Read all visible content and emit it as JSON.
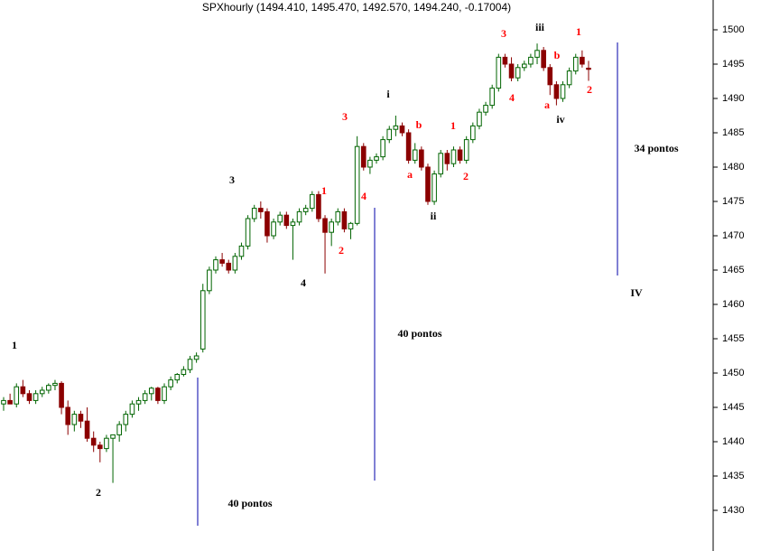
{
  "chart_data": {
    "type": "candlestick",
    "title": "SPXhourly (1494.410, 1495.470, 1492.570, 1494.240, -0.17004)",
    "up_color": "#006400",
    "down_color": "#8b0000",
    "ylim": [
      1424.08,
      1504.34
    ],
    "yticks": [
      1430,
      1435,
      1440,
      1445,
      1450,
      1455,
      1460,
      1465,
      1470,
      1475,
      1480,
      1485,
      1490,
      1495,
      1500
    ],
    "ohlc": [
      [
        1445.5,
        1446.5,
        1444.5,
        1446
      ],
      [
        1446,
        1447,
        1445.5,
        1445.5
      ],
      [
        1445.5,
        1448.5,
        1445,
        1448
      ],
      [
        1448,
        1449,
        1446.5,
        1447
      ],
      [
        1447,
        1447.5,
        1445.5,
        1446
      ],
      [
        1446,
        1447.5,
        1445.5,
        1447
      ],
      [
        1447,
        1448,
        1446.5,
        1447.5
      ],
      [
        1447.5,
        1448.5,
        1447,
        1448.2
      ],
      [
        1448.2,
        1449,
        1447.5,
        1448.5
      ],
      [
        1448.5,
        1448.8,
        1444,
        1445
      ],
      [
        1445,
        1446,
        1441,
        1442.5
      ],
      [
        1442.5,
        1444.5,
        1441.5,
        1444
      ],
      [
        1444,
        1444.5,
        1442,
        1443
      ],
      [
        1443,
        1445,
        1440,
        1440.5
      ],
      [
        1440.5,
        1441.5,
        1438.5,
        1439.5
      ],
      [
        1439.5,
        1440,
        1437,
        1439
      ],
      [
        1439,
        1441,
        1438.5,
        1440.5
      ],
      [
        1440.5,
        1441,
        1434,
        1441
      ],
      [
        1441,
        1443,
        1440,
        1442.5
      ],
      [
        1442.5,
        1444.5,
        1441.5,
        1444
      ],
      [
        1444,
        1446,
        1443.5,
        1445.5
      ],
      [
        1445.5,
        1446.5,
        1444.5,
        1446
      ],
      [
        1446,
        1447.5,
        1445.5,
        1447
      ],
      [
        1447,
        1448,
        1446,
        1447.8
      ],
      [
        1447.8,
        1448,
        1445.5,
        1446
      ],
      [
        1446,
        1448.5,
        1445.5,
        1448
      ],
      [
        1448,
        1449.5,
        1447.5,
        1449
      ],
      [
        1449,
        1450,
        1448.5,
        1449.8
      ],
      [
        1449.8,
        1451,
        1449.5,
        1450.5
      ],
      [
        1450.5,
        1452.5,
        1450,
        1452
      ],
      [
        1452,
        1453,
        1451.5,
        1452.5
      ],
      [
        1453.5,
        1463,
        1453,
        1462
      ],
      [
        1462,
        1465.5,
        1461.5,
        1465
      ],
      [
        1465,
        1467,
        1464.5,
        1466.5
      ],
      [
        1466.5,
        1467.5,
        1465.5,
        1466
      ],
      [
        1466,
        1466.5,
        1464.5,
        1465
      ],
      [
        1465,
        1467.5,
        1464.5,
        1467
      ],
      [
        1467,
        1469,
        1466.5,
        1468.5
      ],
      [
        1468.5,
        1473,
        1468,
        1472.5
      ],
      [
        1472.5,
        1474.5,
        1472,
        1474
      ],
      [
        1474,
        1475,
        1472.5,
        1473.5
      ],
      [
        1473.5,
        1474,
        1469,
        1470
      ],
      [
        1470,
        1472.5,
        1469.5,
        1472
      ],
      [
        1472,
        1473.5,
        1471.5,
        1473
      ],
      [
        1473,
        1473.5,
        1471,
        1471.5
      ],
      [
        1471.5,
        1472.5,
        1466.5,
        1472
      ],
      [
        1472,
        1474,
        1471.5,
        1473.5
      ],
      [
        1473.5,
        1474.5,
        1473,
        1474
      ],
      [
        1474,
        1476.5,
        1473.5,
        1476
      ],
      [
        1476,
        1476.5,
        1472,
        1472.5
      ],
      [
        1472.5,
        1473,
        1464.5,
        1470.5
      ],
      [
        1470.5,
        1472.5,
        1468.5,
        1472
      ],
      [
        1472,
        1474,
        1471.5,
        1473.5
      ],
      [
        1473.5,
        1474,
        1470.5,
        1471
      ],
      [
        1471,
        1472,
        1469.5,
        1471.8
      ],
      [
        1471.8,
        1484.5,
        1471.5,
        1483
      ],
      [
        1483,
        1483.5,
        1479.5,
        1480
      ],
      [
        1480,
        1481.5,
        1479,
        1481
      ],
      [
        1481,
        1482,
        1480.5,
        1481.5
      ],
      [
        1481.5,
        1484.5,
        1481,
        1484
      ],
      [
        1484,
        1486,
        1483.5,
        1485.5
      ],
      [
        1485.5,
        1487.5,
        1484.5,
        1486
      ],
      [
        1486,
        1486.5,
        1484.5,
        1485
      ],
      [
        1485,
        1485.5,
        1480.5,
        1481
      ],
      [
        1481,
        1483.5,
        1480.5,
        1482.5
      ],
      [
        1482.5,
        1483,
        1479.5,
        1480
      ],
      [
        1480,
        1480.5,
        1474.5,
        1475
      ],
      [
        1475,
        1479.5,
        1474.5,
        1479
      ],
      [
        1479,
        1482.5,
        1478.5,
        1482
      ],
      [
        1482,
        1482.5,
        1479.5,
        1480.5
      ],
      [
        1480.5,
        1483,
        1480,
        1482.5
      ],
      [
        1482.5,
        1483,
        1480.5,
        1481
      ],
      [
        1481,
        1484.5,
        1480.5,
        1484
      ],
      [
        1484,
        1486.5,
        1483.5,
        1486
      ],
      [
        1486,
        1488.5,
        1485.5,
        1488
      ],
      [
        1488,
        1489.5,
        1487.5,
        1489
      ],
      [
        1489,
        1492,
        1488.5,
        1491.5
      ],
      [
        1491.5,
        1496.5,
        1491,
        1496
      ],
      [
        1496,
        1496.5,
        1494.5,
        1495
      ],
      [
        1495,
        1496,
        1492.5,
        1493
      ],
      [
        1493,
        1495,
        1492.5,
        1494.5
      ],
      [
        1494.5,
        1495.5,
        1494,
        1495
      ],
      [
        1495,
        1496.5,
        1494.5,
        1496
      ],
      [
        1496,
        1498,
        1495,
        1497
      ],
      [
        1497,
        1497.5,
        1494,
        1494.5
      ],
      [
        1494.5,
        1495,
        1490.5,
        1492
      ],
      [
        1492,
        1492.5,
        1489,
        1490
      ],
      [
        1490,
        1492.5,
        1489.5,
        1492
      ],
      [
        1492,
        1494.5,
        1491.5,
        1494
      ],
      [
        1494,
        1496.5,
        1493.5,
        1496
      ],
      [
        1496,
        1497,
        1494.5,
        1495
      ],
      [
        1494.41,
        1495.47,
        1492.57,
        1494.24
      ]
    ],
    "annotations": [
      {
        "text": "1",
        "color": "#000000"
      },
      {
        "text": "2",
        "color": "#000000"
      },
      {
        "text": "3",
        "color": "#000000"
      },
      {
        "text": "4",
        "color": "#000000"
      },
      {
        "text": "i",
        "color": "#000000"
      },
      {
        "text": "ii",
        "color": "#000000"
      },
      {
        "text": "iii",
        "color": "#000000"
      },
      {
        "text": "iv",
        "color": "#000000"
      },
      {
        "text": "IV",
        "color": "#000000"
      },
      {
        "text": "3",
        "color": "#ff0000"
      },
      {
        "text": "1",
        "color": "#ff0000"
      },
      {
        "text": "2",
        "color": "#ff0000"
      },
      {
        "text": "4",
        "color": "#ff0000"
      },
      {
        "text": "b",
        "color": "#ff0000"
      },
      {
        "text": "a",
        "color": "#ff0000"
      },
      {
        "text": "1",
        "color": "#ff0000"
      },
      {
        "text": "2",
        "color": "#ff0000"
      },
      {
        "text": "3",
        "color": "#ff0000"
      },
      {
        "text": "4",
        "color": "#ff0000"
      },
      {
        "text": "b",
        "color": "#ff0000"
      },
      {
        "text": "a",
        "color": "#ff0000"
      },
      {
        "text": "1",
        "color": "#ff0000"
      },
      {
        "text": "2",
        "color": "#ff0000"
      }
    ],
    "measures": [
      {
        "text": "40 pontos",
        "color": "#0000aa"
      },
      {
        "text": "40 pontos",
        "color": "#0000aa"
      },
      {
        "text": "34 pontos",
        "color": "#0000aa"
      }
    ]
  }
}
